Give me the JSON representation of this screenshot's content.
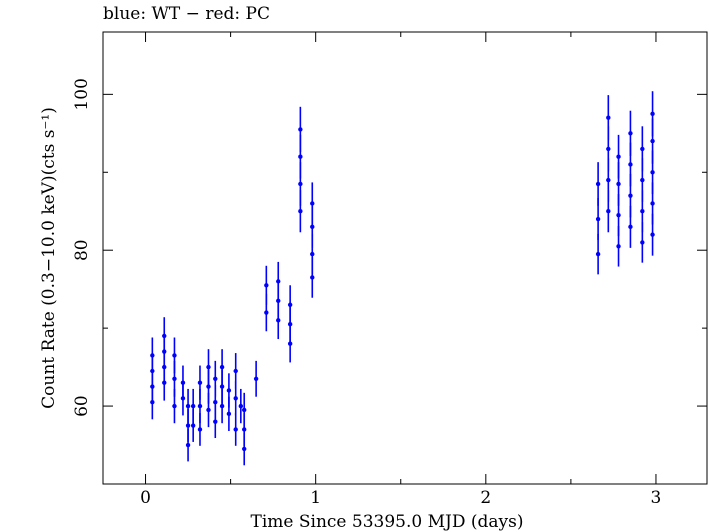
{
  "chart_data": {
    "type": "scatter",
    "title": "blue: WT − red: PC",
    "xlabel": "Time Since 53395.0 MJD (days)",
    "ylabel": "Count Rate (0.3−10.0 keV)(cts s⁻¹)",
    "xlim": [
      -0.25,
      3.3
    ],
    "ylim": [
      50,
      108
    ],
    "xticks": [
      0,
      1,
      2,
      3
    ],
    "xtick_labels": [
      "0",
      "1",
      "2",
      "3"
    ],
    "yticks": [
      60,
      80,
      100
    ],
    "ytick_labels": [
      "60",
      "80",
      "100"
    ],
    "grid": false,
    "legend": "none",
    "series": [
      {
        "name": "WT",
        "color": "#0000ff",
        "points": [
          {
            "x": 0.04,
            "y": 60.5,
            "err": 2.2
          },
          {
            "x": 0.04,
            "y": 62.5,
            "err": 2.2
          },
          {
            "x": 0.04,
            "y": 64.5,
            "err": 2.3
          },
          {
            "x": 0.04,
            "y": 66.5,
            "err": 2.3
          },
          {
            "x": 0.11,
            "y": 63.0,
            "err": 2.3
          },
          {
            "x": 0.11,
            "y": 65.0,
            "err": 2.3
          },
          {
            "x": 0.11,
            "y": 67.0,
            "err": 2.3
          },
          {
            "x": 0.11,
            "y": 69.0,
            "err": 2.4
          },
          {
            "x": 0.17,
            "y": 60.0,
            "err": 2.2
          },
          {
            "x": 0.17,
            "y": 63.5,
            "err": 2.3
          },
          {
            "x": 0.17,
            "y": 66.5,
            "err": 2.3
          },
          {
            "x": 0.22,
            "y": 61.0,
            "err": 2.2
          },
          {
            "x": 0.22,
            "y": 63.0,
            "err": 2.2
          },
          {
            "x": 0.25,
            "y": 55.0,
            "err": 2.1
          },
          {
            "x": 0.25,
            "y": 57.5,
            "err": 2.1
          },
          {
            "x": 0.25,
            "y": 60.0,
            "err": 2.2
          },
          {
            "x": 0.28,
            "y": 57.5,
            "err": 2.1
          },
          {
            "x": 0.28,
            "y": 60.0,
            "err": 2.2
          },
          {
            "x": 0.32,
            "y": 57.0,
            "err": 2.1
          },
          {
            "x": 0.32,
            "y": 60.0,
            "err": 2.2
          },
          {
            "x": 0.32,
            "y": 63.0,
            "err": 2.2
          },
          {
            "x": 0.37,
            "y": 59.5,
            "err": 2.2
          },
          {
            "x": 0.37,
            "y": 62.5,
            "err": 2.2
          },
          {
            "x": 0.37,
            "y": 65.0,
            "err": 2.3
          },
          {
            "x": 0.41,
            "y": 58.0,
            "err": 2.1
          },
          {
            "x": 0.41,
            "y": 60.5,
            "err": 2.2
          },
          {
            "x": 0.41,
            "y": 63.5,
            "err": 2.3
          },
          {
            "x": 0.45,
            "y": 60.0,
            "err": 2.2
          },
          {
            "x": 0.45,
            "y": 62.5,
            "err": 2.2
          },
          {
            "x": 0.45,
            "y": 65.0,
            "err": 2.3
          },
          {
            "x": 0.49,
            "y": 59.0,
            "err": 2.2
          },
          {
            "x": 0.49,
            "y": 62.0,
            "err": 2.2
          },
          {
            "x": 0.53,
            "y": 61.0,
            "err": 2.2
          },
          {
            "x": 0.53,
            "y": 64.5,
            "err": 2.3
          },
          {
            "x": 0.53,
            "y": 57.0,
            "err": 2.1
          },
          {
            "x": 0.56,
            "y": 60.0,
            "err": 2.2
          },
          {
            "x": 0.58,
            "y": 54.5,
            "err": 2.1
          },
          {
            "x": 0.58,
            "y": 57.0,
            "err": 2.1
          },
          {
            "x": 0.58,
            "y": 59.5,
            "err": 2.2
          },
          {
            "x": 0.65,
            "y": 63.5,
            "err": 2.3
          },
          {
            "x": 0.71,
            "y": 72.0,
            "err": 2.4
          },
          {
            "x": 0.71,
            "y": 75.5,
            "err": 2.5
          },
          {
            "x": 0.78,
            "y": 71.0,
            "err": 2.4
          },
          {
            "x": 0.78,
            "y": 73.5,
            "err": 2.5
          },
          {
            "x": 0.78,
            "y": 76.0,
            "err": 2.5
          },
          {
            "x": 0.85,
            "y": 68.0,
            "err": 2.4
          },
          {
            "x": 0.85,
            "y": 70.5,
            "err": 2.4
          },
          {
            "x": 0.85,
            "y": 73.0,
            "err": 2.5
          },
          {
            "x": 0.91,
            "y": 85.0,
            "err": 2.7
          },
          {
            "x": 0.91,
            "y": 88.5,
            "err": 2.8
          },
          {
            "x": 0.91,
            "y": 92.0,
            "err": 2.8
          },
          {
            "x": 0.91,
            "y": 95.5,
            "err": 2.9
          },
          {
            "x": 0.98,
            "y": 76.5,
            "err": 2.6
          },
          {
            "x": 0.98,
            "y": 79.5,
            "err": 2.6
          },
          {
            "x": 0.98,
            "y": 83.0,
            "err": 2.7
          },
          {
            "x": 0.98,
            "y": 86.0,
            "err": 2.7
          },
          {
            "x": 2.66,
            "y": 79.5,
            "err": 2.6
          },
          {
            "x": 2.66,
            "y": 84.0,
            "err": 2.7
          },
          {
            "x": 2.66,
            "y": 88.5,
            "err": 2.8
          },
          {
            "x": 2.72,
            "y": 85.0,
            "err": 2.7
          },
          {
            "x": 2.72,
            "y": 89.0,
            "err": 2.8
          },
          {
            "x": 2.72,
            "y": 93.0,
            "err": 2.9
          },
          {
            "x": 2.72,
            "y": 97.0,
            "err": 2.9
          },
          {
            "x": 2.78,
            "y": 80.5,
            "err": 2.6
          },
          {
            "x": 2.78,
            "y": 84.5,
            "err": 2.7
          },
          {
            "x": 2.78,
            "y": 88.5,
            "err": 2.8
          },
          {
            "x": 2.78,
            "y": 92.0,
            "err": 2.8
          },
          {
            "x": 2.85,
            "y": 83.0,
            "err": 2.7
          },
          {
            "x": 2.85,
            "y": 87.0,
            "err": 2.8
          },
          {
            "x": 2.85,
            "y": 91.0,
            "err": 2.8
          },
          {
            "x": 2.85,
            "y": 95.0,
            "err": 2.9
          },
          {
            "x": 2.92,
            "y": 81.0,
            "err": 2.6
          },
          {
            "x": 2.92,
            "y": 85.0,
            "err": 2.7
          },
          {
            "x": 2.92,
            "y": 89.0,
            "err": 2.8
          },
          {
            "x": 2.92,
            "y": 93.0,
            "err": 2.9
          },
          {
            "x": 2.98,
            "y": 82.0,
            "err": 2.7
          },
          {
            "x": 2.98,
            "y": 86.0,
            "err": 2.7
          },
          {
            "x": 2.98,
            "y": 90.0,
            "err": 2.8
          },
          {
            "x": 2.98,
            "y": 94.0,
            "err": 2.9
          },
          {
            "x": 2.98,
            "y": 97.5,
            "err": 2.9
          }
        ]
      }
    ]
  }
}
